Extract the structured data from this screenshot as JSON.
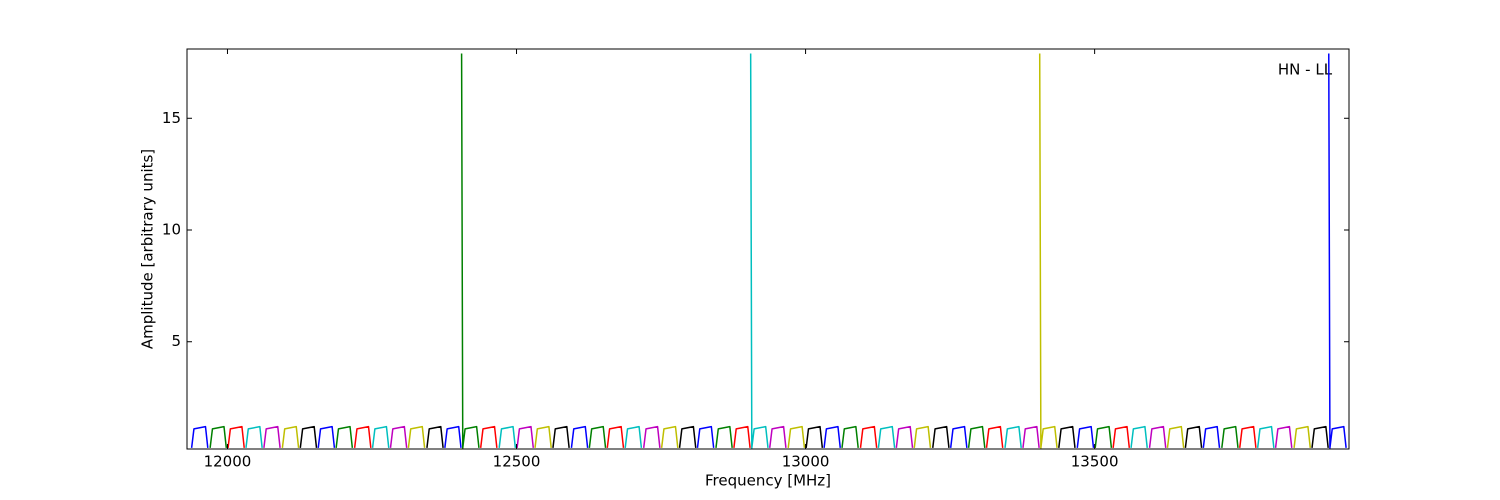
{
  "chart_data": {
    "type": "line",
    "annotation": "HN - LL",
    "xlabel": "Frequency [MHz]",
    "ylabel": "Amplitude [arbitrary units]",
    "xlim": [
      11930,
      13940
    ],
    "ylim": [
      0.2,
      18.1
    ],
    "xticks": [
      12000,
      12500,
      13000,
      13500
    ],
    "yticks": [
      5,
      10,
      15
    ],
    "series": [
      {
        "color": "#0000ff",
        "x": [
          11938,
          11942,
          11962,
          11966,
          null,
          12157,
          12161,
          12181,
          12185,
          null,
          12376,
          12380,
          12400,
          12404,
          null,
          12595,
          12599,
          12619,
          12623,
          null,
          12813,
          12817,
          12837,
          12841,
          null,
          13032,
          13036,
          13056,
          13060,
          null,
          13251,
          13255,
          13275,
          13279,
          null,
          13470,
          13474,
          13494,
          13498,
          null,
          13688,
          13692,
          13712,
          13716,
          null,
          13905,
          13907,
          13911,
          13931,
          13935
        ],
        "values": [
          0.25,
          1.1,
          1.2,
          0.25,
          null,
          0.25,
          1.1,
          1.2,
          0.25,
          null,
          0.25,
          1.1,
          1.2,
          0.25,
          null,
          0.25,
          1.1,
          1.2,
          0.25,
          null,
          0.25,
          1.1,
          1.2,
          0.25,
          null,
          0.25,
          1.1,
          1.2,
          0.25,
          null,
          0.25,
          1.1,
          1.2,
          0.25,
          null,
          0.25,
          1.1,
          1.2,
          0.25,
          null,
          0.25,
          1.1,
          1.2,
          0.25,
          null,
          17.9,
          0.25,
          1.1,
          1.2,
          0.25
        ]
      },
      {
        "color": "#008000",
        "x": [
          11970,
          11974,
          11994,
          11998,
          null,
          12188,
          12192,
          12212,
          12216,
          null,
          12405,
          12407,
          12411,
          12431,
          12435,
          null,
          12626,
          12630,
          12650,
          12654,
          null,
          12845,
          12849,
          12869,
          12873,
          null,
          13063,
          13067,
          13087,
          13091,
          null,
          13282,
          13286,
          13306,
          13310,
          null,
          13501,
          13505,
          13525,
          13529,
          null,
          13720,
          13724,
          13744,
          13748
        ],
        "values": [
          0.25,
          1.1,
          1.2,
          0.25,
          null,
          0.25,
          1.1,
          1.2,
          0.25,
          null,
          17.9,
          0.25,
          1.1,
          1.2,
          0.25,
          null,
          0.25,
          1.1,
          1.2,
          0.25,
          null,
          0.25,
          1.1,
          1.2,
          0.25,
          null,
          0.25,
          1.1,
          1.2,
          0.25,
          null,
          0.25,
          1.1,
          1.2,
          0.25,
          null,
          0.25,
          1.1,
          1.2,
          0.25,
          null,
          0.25,
          1.1,
          1.2,
          0.25
        ]
      },
      {
        "color": "#ff0000",
        "x": [
          12001,
          12005,
          12025,
          12029,
          null,
          12220,
          12224,
          12244,
          12248,
          null,
          12438,
          12442,
          12462,
          12466,
          null,
          12657,
          12661,
          12681,
          12685,
          null,
          12876,
          12880,
          12900,
          12904,
          null,
          13095,
          13099,
          13119,
          13123,
          null,
          13313,
          13317,
          13337,
          13341,
          null,
          13532,
          13536,
          13556,
          13560,
          null,
          13751,
          13755,
          13775,
          13779
        ],
        "values": [
          0.25,
          1.1,
          1.2,
          0.25,
          null,
          0.25,
          1.1,
          1.2,
          0.25,
          null,
          0.25,
          1.1,
          1.2,
          0.25,
          null,
          0.25,
          1.1,
          1.2,
          0.25,
          null,
          0.25,
          1.1,
          1.2,
          0.25,
          null,
          0.25,
          1.1,
          1.2,
          0.25,
          null,
          0.25,
          1.1,
          1.2,
          0.25,
          null,
          0.25,
          1.1,
          1.2,
          0.25,
          null,
          0.25,
          1.1,
          1.2,
          0.25
        ]
      },
      {
        "color": "#00bfbf",
        "x": [
          12032,
          12036,
          12056,
          12060,
          null,
          12251,
          12255,
          12275,
          12279,
          null,
          12470,
          12474,
          12494,
          12498,
          null,
          12688,
          12692,
          12712,
          12716,
          null,
          12905,
          12907,
          12911,
          12931,
          12935,
          null,
          13126,
          13130,
          13150,
          13154,
          null,
          13345,
          13349,
          13369,
          13373,
          null,
          13563,
          13567,
          13587,
          13591,
          null,
          13782,
          13786,
          13806,
          13810
        ],
        "values": [
          0.25,
          1.1,
          1.2,
          0.25,
          null,
          0.25,
          1.1,
          1.2,
          0.25,
          null,
          0.25,
          1.1,
          1.2,
          0.25,
          null,
          0.25,
          1.1,
          1.2,
          0.25,
          null,
          17.9,
          0.25,
          1.1,
          1.2,
          0.25,
          null,
          0.25,
          1.1,
          1.2,
          0.25,
          null,
          0.25,
          1.1,
          1.2,
          0.25,
          null,
          0.25,
          1.1,
          1.2,
          0.25,
          null,
          0.25,
          1.1,
          1.2,
          0.25
        ]
      },
      {
        "color": "#bf00bf",
        "x": [
          12063,
          12067,
          12087,
          12091,
          null,
          12282,
          12286,
          12306,
          12310,
          null,
          12501,
          12505,
          12525,
          12529,
          null,
          12720,
          12724,
          12744,
          12748,
          null,
          12938,
          12942,
          12962,
          12966,
          null,
          13157,
          13161,
          13181,
          13185,
          null,
          13376,
          13380,
          13400,
          13404,
          null,
          13595,
          13599,
          13619,
          13623,
          null,
          13813,
          13817,
          13837,
          13841
        ],
        "values": [
          0.25,
          1.1,
          1.2,
          0.25,
          null,
          0.25,
          1.1,
          1.2,
          0.25,
          null,
          0.25,
          1.1,
          1.2,
          0.25,
          null,
          0.25,
          1.1,
          1.2,
          0.25,
          null,
          0.25,
          1.1,
          1.2,
          0.25,
          null,
          0.25,
          1.1,
          1.2,
          0.25,
          null,
          0.25,
          1.1,
          1.2,
          0.25,
          null,
          0.25,
          1.1,
          1.2,
          0.25,
          null,
          0.25,
          1.1,
          1.2,
          0.25
        ]
      },
      {
        "color": "#bfbf00",
        "x": [
          12095,
          12099,
          12119,
          12123,
          null,
          12313,
          12317,
          12337,
          12341,
          null,
          12532,
          12536,
          12556,
          12560,
          null,
          12751,
          12755,
          12775,
          12779,
          null,
          12970,
          12974,
          12994,
          12998,
          null,
          13188,
          13192,
          13212,
          13216,
          null,
          13405,
          13407,
          13411,
          13431,
          13435,
          null,
          13626,
          13630,
          13650,
          13654,
          null,
          13845,
          13849,
          13869,
          13873
        ],
        "values": [
          0.25,
          1.1,
          1.2,
          0.25,
          null,
          0.25,
          1.1,
          1.2,
          0.25,
          null,
          0.25,
          1.1,
          1.2,
          0.25,
          null,
          0.25,
          1.1,
          1.2,
          0.25,
          null,
          0.25,
          1.1,
          1.2,
          0.25,
          null,
          0.25,
          1.1,
          1.2,
          0.25,
          null,
          17.9,
          0.25,
          1.1,
          1.2,
          0.25,
          null,
          0.25,
          1.1,
          1.2,
          0.25,
          null,
          0.25,
          1.1,
          1.2,
          0.25
        ]
      },
      {
        "color": "#000000",
        "x": [
          12126,
          12130,
          12150,
          12154,
          null,
          12345,
          12349,
          12369,
          12373,
          null,
          12563,
          12567,
          12587,
          12591,
          null,
          12782,
          12786,
          12806,
          12810,
          null,
          13001,
          13005,
          13025,
          13029,
          null,
          13220,
          13224,
          13244,
          13248,
          null,
          13438,
          13442,
          13462,
          13466,
          null,
          13657,
          13661,
          13681,
          13685,
          null,
          13876,
          13880,
          13900,
          13904
        ],
        "values": [
          0.25,
          1.1,
          1.2,
          0.25,
          null,
          0.25,
          1.1,
          1.2,
          0.25,
          null,
          0.25,
          1.1,
          1.2,
          0.25,
          null,
          0.25,
          1.1,
          1.2,
          0.25,
          null,
          0.25,
          1.1,
          1.2,
          0.25,
          null,
          0.25,
          1.1,
          1.2,
          0.25,
          null,
          0.25,
          1.1,
          1.2,
          0.25,
          null,
          0.25,
          1.1,
          1.2,
          0.25,
          null,
          0.25,
          1.1,
          1.2,
          0.25
        ]
      }
    ]
  }
}
